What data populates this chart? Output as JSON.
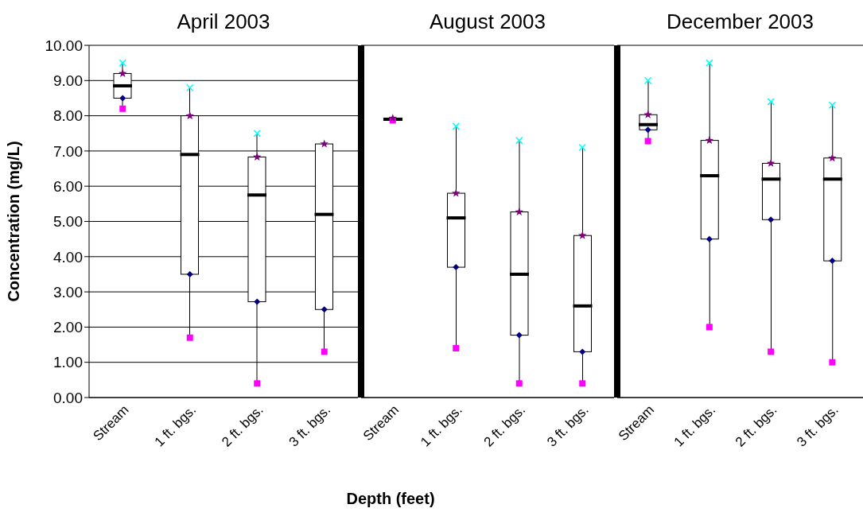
{
  "chart_data": [
    {
      "type": "box",
      "title": "April 2003",
      "ylabel": "Concentration (mg/L)",
      "categories": [
        "Stream",
        "1 ft. bgs.",
        "2 ft. bgs.",
        "3 ft. bgs."
      ],
      "color": "#000000",
      "boxes": [
        {
          "low": 8.2,
          "q1": 8.5,
          "median": 8.85,
          "q3": 9.2,
          "high": 9.5
        },
        {
          "low": 1.7,
          "q1": 3.5,
          "median": 6.9,
          "q3": 8.0,
          "high": 8.8
        },
        {
          "low": 0.4,
          "q1": 2.72,
          "median": 5.75,
          "q3": 6.83,
          "high": 7.5
        },
        {
          "low": 1.3,
          "q1": 2.5,
          "median": 5.2,
          "q3": 7.2,
          "high": 7.2
        }
      ],
      "series": [
        {
          "type": "scatter",
          "color": "#00ffff",
          "marker": "cross",
          "x": [
            "Stream",
            "1 ft. bgs.",
            "2 ft. bgs.",
            "3 ft. bgs."
          ],
          "values": [
            9.5,
            8.8,
            7.5,
            null
          ]
        },
        {
          "type": "scatter",
          "color": "#000080",
          "marker": "diamond",
          "x": [
            "Stream",
            "1 ft. bgs.",
            "2 ft. bgs.",
            "3 ft. bgs."
          ],
          "values": [
            8.5,
            3.5,
            2.72,
            2.5
          ]
        },
        {
          "type": "scatter",
          "color": "#ff00ff",
          "marker": "square",
          "x": [
            "Stream",
            "1 ft. bgs.",
            "2 ft. bgs.",
            "3 ft. bgs."
          ],
          "values": [
            8.2,
            1.7,
            0.4,
            1.3
          ]
        },
        {
          "type": "scatter",
          "color": "#800080",
          "marker": "star",
          "x": [
            "Stream",
            "1 ft. bgs.",
            "2 ft. bgs.",
            "3 ft. bgs."
          ],
          "values": [
            9.2,
            8.0,
            6.83,
            7.2
          ]
        }
      ],
      "ylim": [
        0,
        10
      ],
      "yticks": [
        {
          "value": 0,
          "label": "0.00"
        },
        {
          "value": 1,
          "label": "1.00"
        },
        {
          "value": 2,
          "label": "2.00"
        },
        {
          "value": 3,
          "label": "3.00"
        },
        {
          "value": 4,
          "label": "4.00"
        },
        {
          "value": 5,
          "label": "5.00"
        },
        {
          "value": 6,
          "label": "6.00"
        },
        {
          "value": 7,
          "label": "7.00"
        },
        {
          "value": 8,
          "label": "8.00"
        },
        {
          "value": 9,
          "label": "9.00"
        },
        {
          "value": 10,
          "label": "10.00"
        }
      ],
      "grid": "y"
    },
    {
      "type": "box",
      "title": "August 2003",
      "xlabel": "Depth (feet)",
      "categories": [
        "Stream",
        "1 ft. bgs.",
        "2 ft. bgs.",
        "3 ft. bgs."
      ],
      "color": "#000000",
      "boxes": [
        {
          "low": 7.87,
          "q1": 7.88,
          "median": 7.9,
          "q3": 7.93,
          "high": 7.93
        },
        {
          "low": 1.4,
          "q1": 3.7,
          "median": 5.1,
          "q3": 5.8,
          "high": 7.7
        },
        {
          "low": 0.4,
          "q1": 1.77,
          "median": 3.5,
          "q3": 5.27,
          "high": 7.3
        },
        {
          "low": 0.4,
          "q1": 1.3,
          "median": 2.6,
          "q3": 4.6,
          "high": 7.1
        }
      ],
      "series": [
        {
          "type": "scatter",
          "color": "#00ffff",
          "marker": "cross",
          "x": [
            "Stream",
            "1 ft. bgs.",
            "2 ft. bgs.",
            "3 ft. bgs."
          ],
          "values": [
            null,
            7.7,
            7.3,
            7.1
          ]
        },
        {
          "type": "scatter",
          "color": "#000080",
          "marker": "diamond",
          "x": [
            "Stream",
            "1 ft. bgs.",
            "2 ft. bgs.",
            "3 ft. bgs."
          ],
          "values": [
            null,
            3.7,
            1.77,
            1.3
          ]
        },
        {
          "type": "scatter",
          "color": "#ff00ff",
          "marker": "square",
          "x": [
            "Stream",
            "1 ft. bgs.",
            "2 ft. bgs.",
            "3 ft. bgs."
          ],
          "values": [
            7.87,
            1.4,
            0.4,
            0.4
          ]
        },
        {
          "type": "scatter",
          "color": "#800080",
          "marker": "star",
          "x": [
            "Stream",
            "1 ft. bgs.",
            "2 ft. bgs.",
            "3 ft. bgs."
          ],
          "values": [
            7.93,
            5.8,
            5.27,
            4.6
          ]
        }
      ],
      "ylim": [
        0,
        10
      ],
      "grid": "y",
      "tick_labels": "x"
    },
    {
      "type": "box",
      "title": "December 2003",
      "categories": [
        "Stream",
        "1 ft. bgs.",
        "2 ft. bgs.",
        "3 ft. bgs."
      ],
      "color": "#000000",
      "boxes": [
        {
          "low": 7.28,
          "q1": 7.6,
          "median": 7.75,
          "q3": 8.03,
          "high": 9.0
        },
        {
          "low": 2.0,
          "q1": 4.5,
          "median": 6.3,
          "q3": 7.3,
          "high": 9.5
        },
        {
          "low": 1.3,
          "q1": 5.05,
          "median": 6.2,
          "q3": 6.65,
          "high": 8.4
        },
        {
          "low": 1.0,
          "q1": 3.88,
          "median": 6.2,
          "q3": 6.8,
          "high": 8.3
        }
      ],
      "series": [
        {
          "type": "scatter",
          "color": "#00ffff",
          "marker": "cross",
          "x": [
            "Stream",
            "1 ft. bgs.",
            "2 ft. bgs.",
            "3 ft. bgs."
          ],
          "values": [
            9.0,
            9.5,
            8.4,
            8.3
          ]
        },
        {
          "type": "scatter",
          "color": "#000080",
          "marker": "diamond",
          "x": [
            "Stream",
            "1 ft. bgs.",
            "2 ft. bgs.",
            "3 ft. bgs."
          ],
          "values": [
            7.6,
            4.5,
            5.05,
            3.88
          ]
        },
        {
          "type": "scatter",
          "color": "#ff00ff",
          "marker": "square",
          "x": [
            "Stream",
            "1 ft. bgs.",
            "2 ft. bgs.",
            "3 ft. bgs."
          ],
          "values": [
            7.28,
            2.0,
            1.3,
            1.0
          ]
        },
        {
          "type": "scatter",
          "color": "#800080",
          "marker": "star",
          "x": [
            "Stream",
            "1 ft. bgs.",
            "2 ft. bgs.",
            "3 ft. bgs."
          ],
          "values": [
            8.03,
            7.3,
            6.65,
            6.8
          ]
        }
      ],
      "ylim": [
        0,
        10
      ],
      "grid": "y",
      "tick_labels": "x"
    }
  ]
}
